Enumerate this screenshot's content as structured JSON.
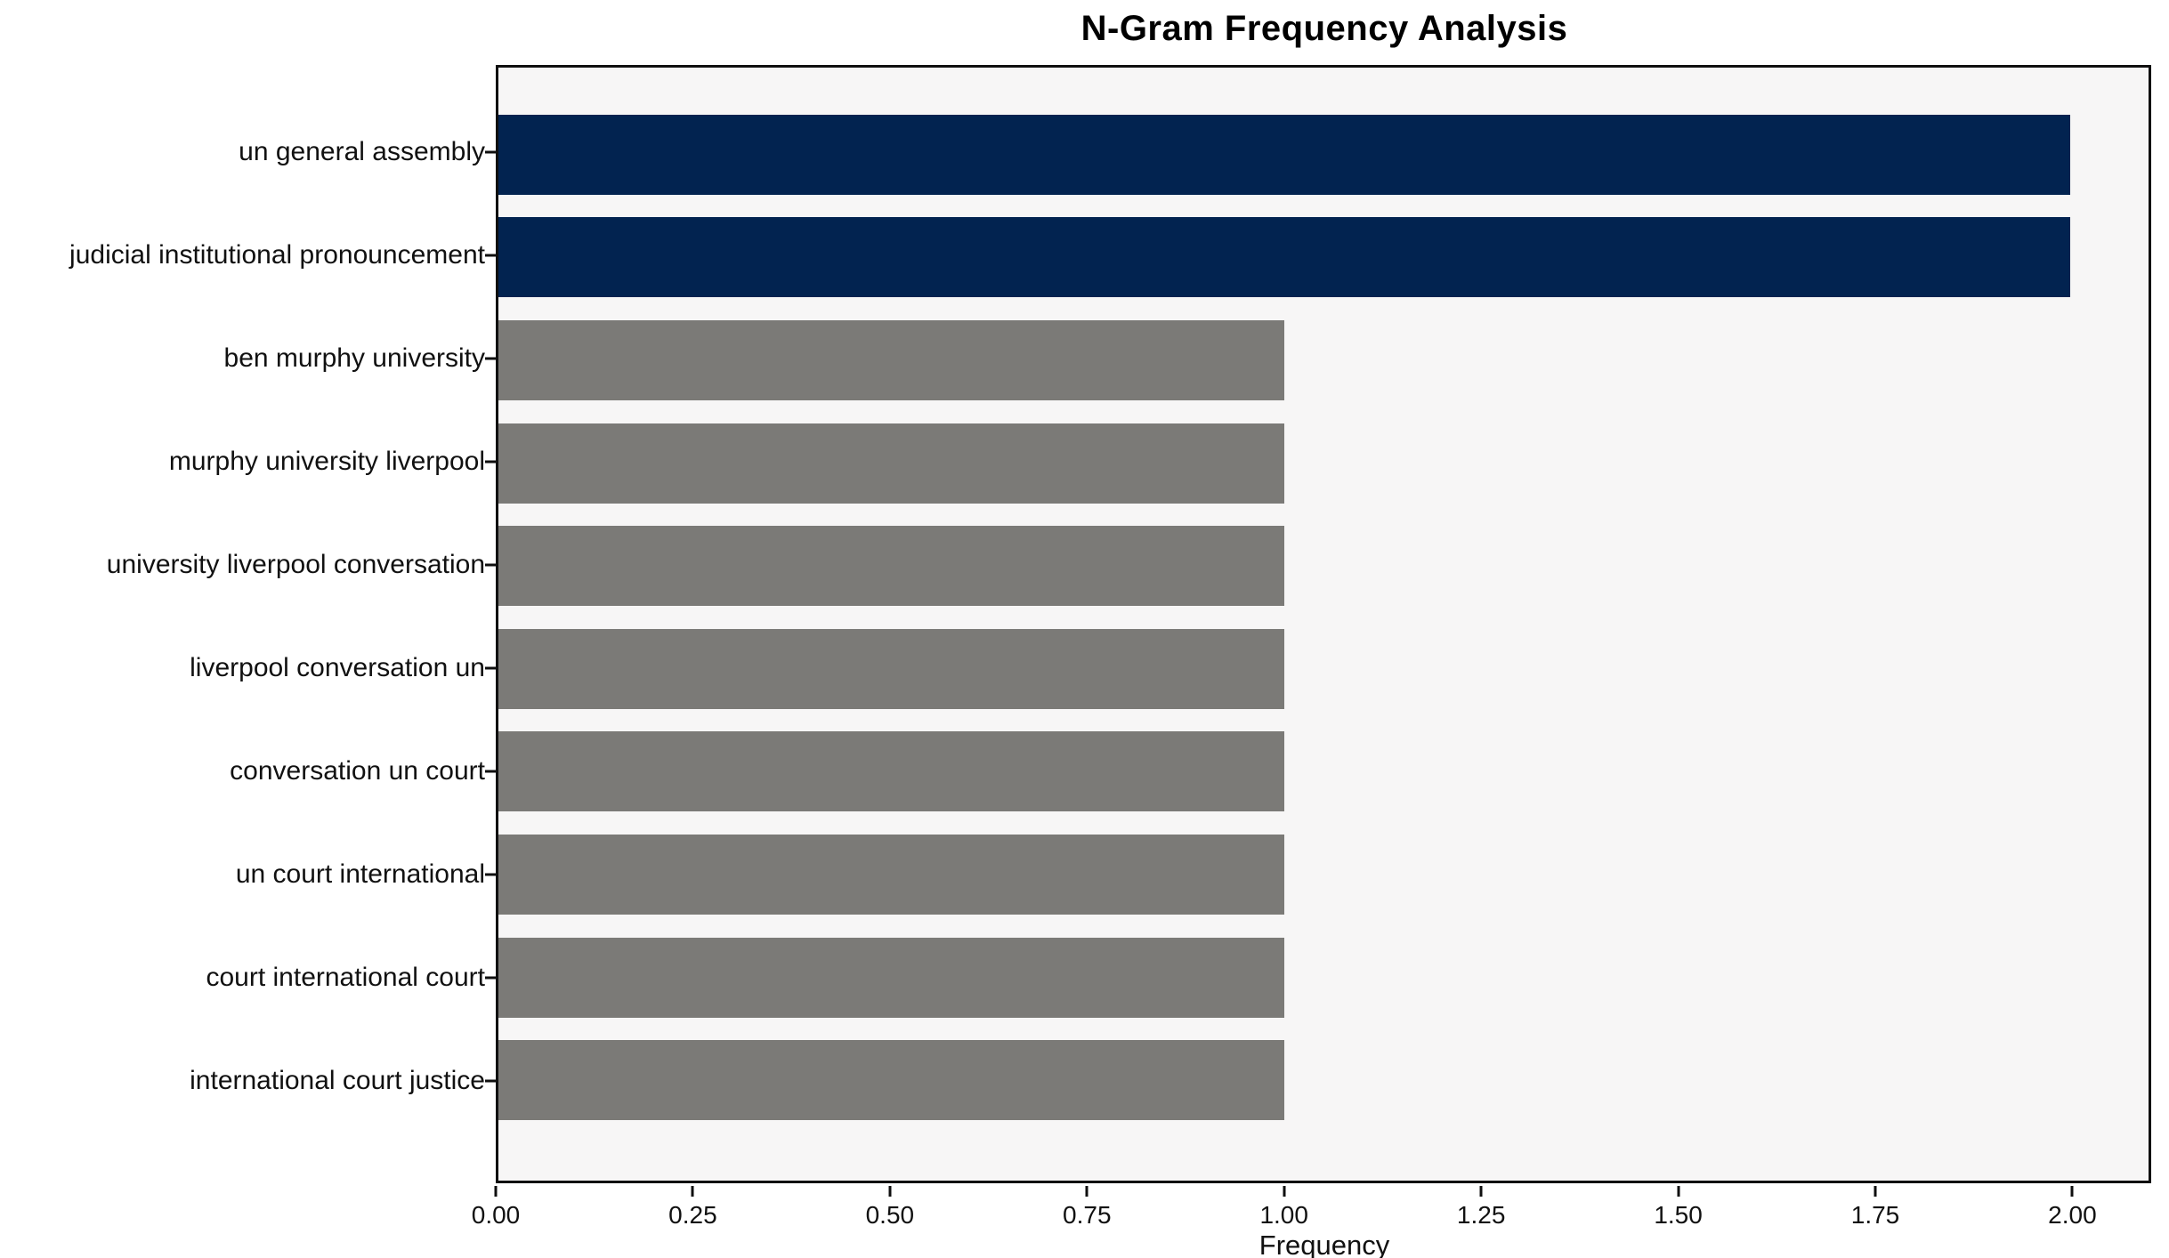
{
  "chart_data": {
    "type": "bar",
    "orientation": "horizontal",
    "title": "N-Gram Frequency Analysis",
    "xlabel": "Frequency",
    "ylabel": "",
    "categories": [
      "un general assembly",
      "judicial institutional pronouncement",
      "ben murphy university",
      "murphy university liverpool",
      "university liverpool conversation",
      "liverpool conversation un",
      "conversation un court",
      "un court international",
      "court international court",
      "international court justice"
    ],
    "values": [
      2,
      2,
      1,
      1,
      1,
      1,
      1,
      1,
      1,
      1
    ],
    "xlim": [
      0,
      2.1
    ],
    "xticks": [
      {
        "value": 0.0,
        "label": "0.00"
      },
      {
        "value": 0.25,
        "label": "0.25"
      },
      {
        "value": 0.5,
        "label": "0.50"
      },
      {
        "value": 0.75,
        "label": "0.75"
      },
      {
        "value": 1.0,
        "label": "1.00"
      },
      {
        "value": 1.25,
        "label": "1.25"
      },
      {
        "value": 1.5,
        "label": "1.50"
      },
      {
        "value": 1.75,
        "label": "1.75"
      },
      {
        "value": 2.0,
        "label": "2.00"
      }
    ],
    "grid": false,
    "legend": null,
    "colors": {
      "highlight_bar": "#022350",
      "default_bar": "#7b7a77",
      "plot_background": "#f7f6f6",
      "figure_background": "#ffffff",
      "spine": "#0f0f0f",
      "text": "#111111"
    },
    "bar_color_by_value_threshold": 2
  }
}
